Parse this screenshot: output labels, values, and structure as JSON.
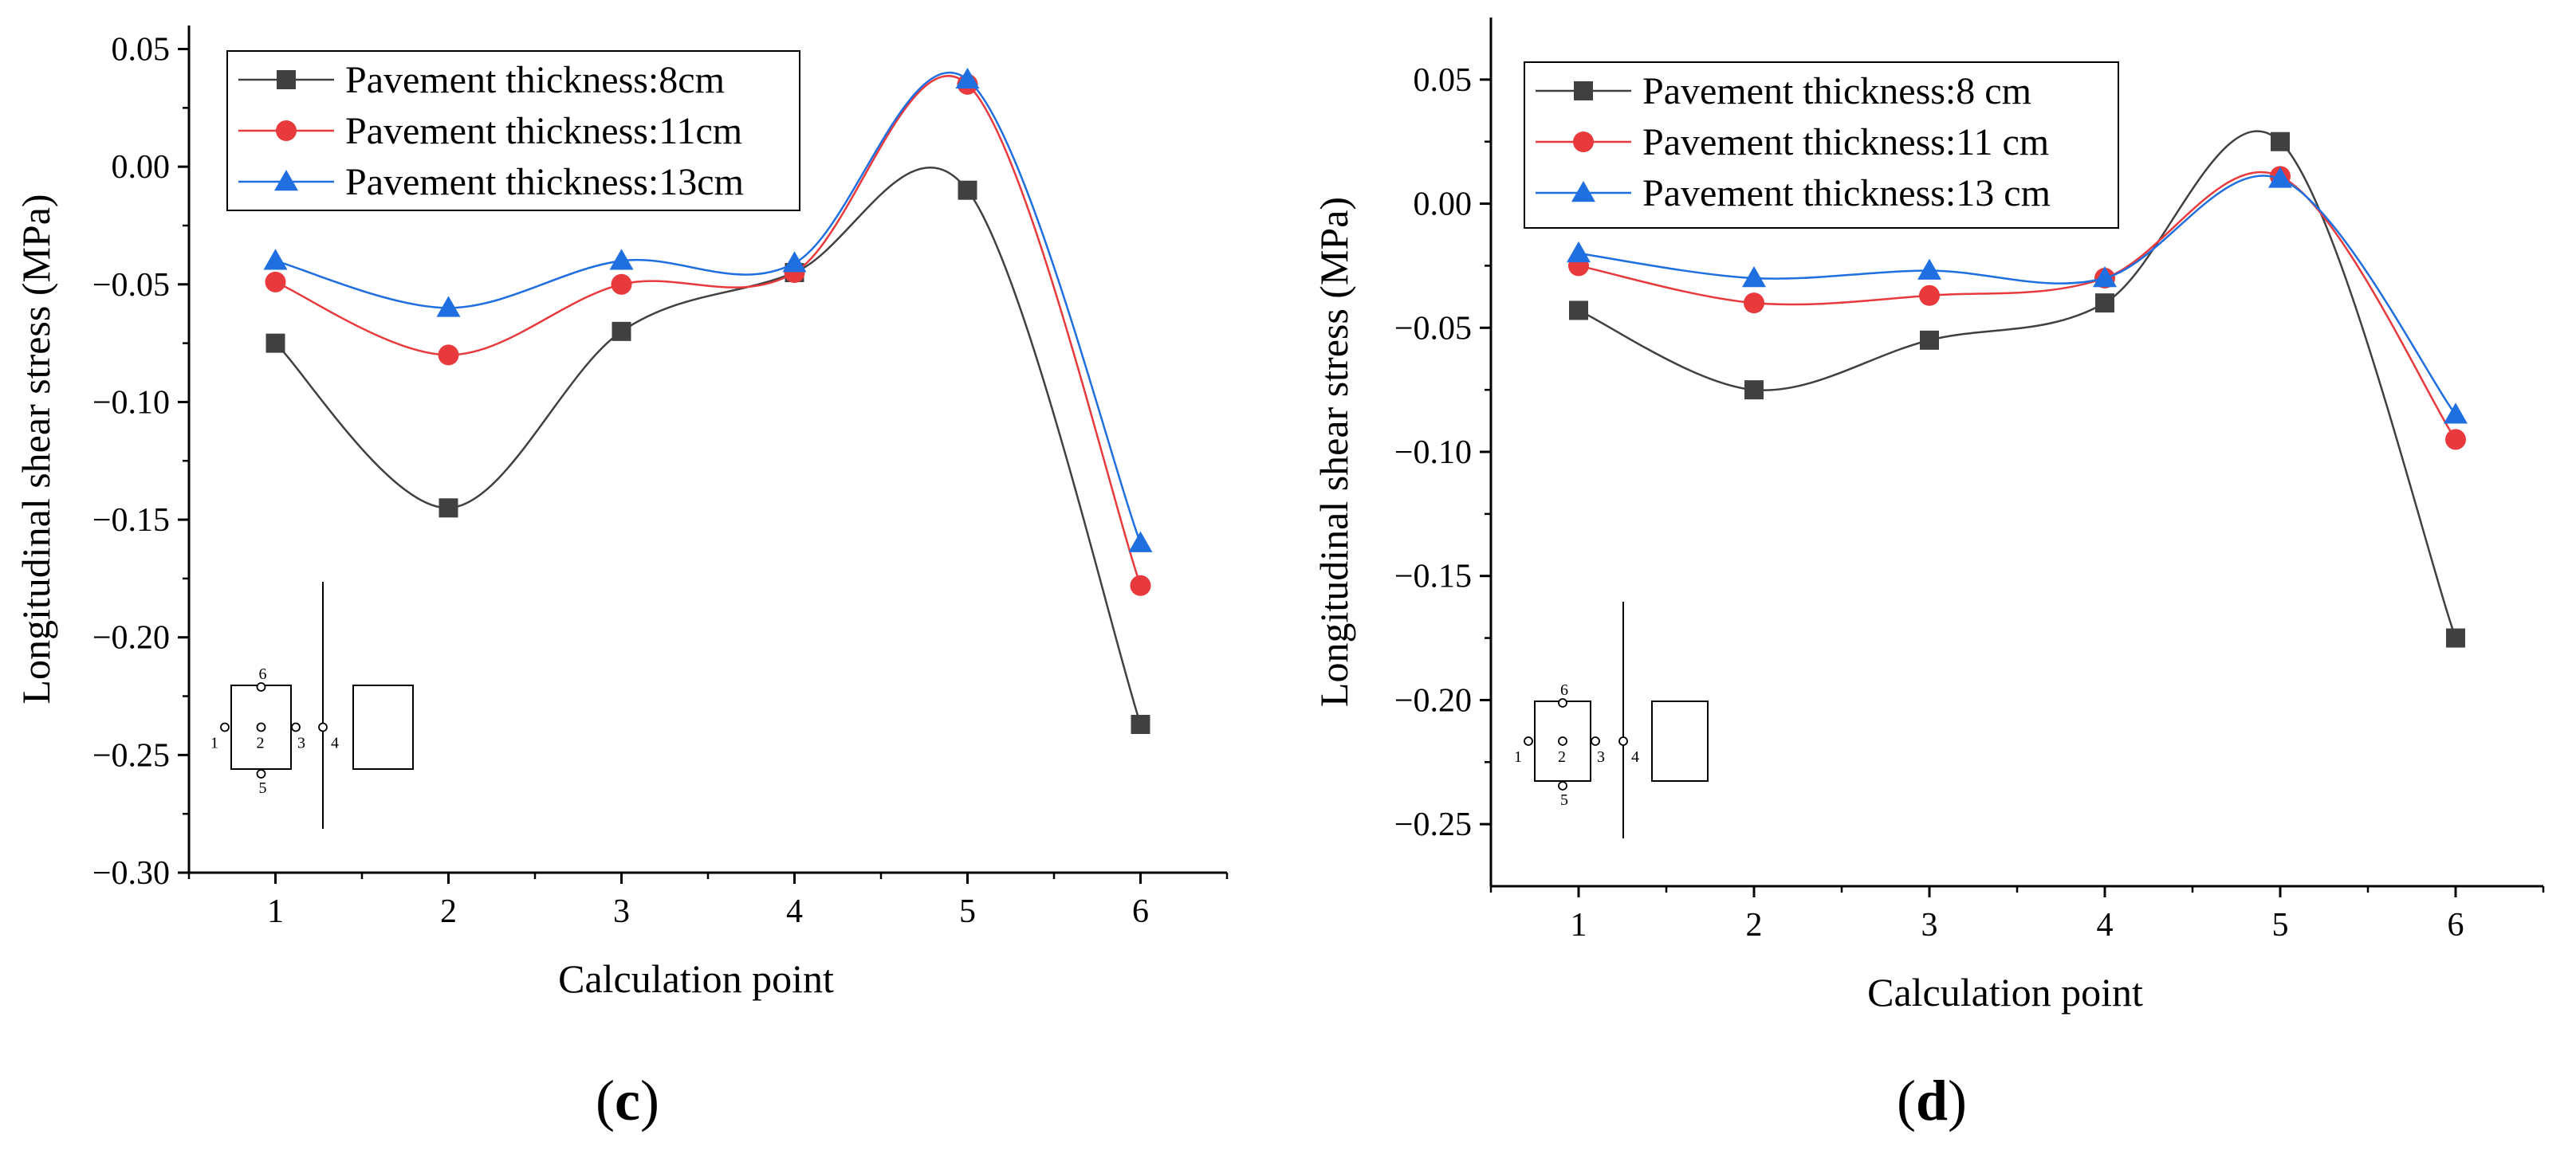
{
  "chart_data": [
    {
      "type": "line",
      "panel_label": "c",
      "xlabel": "Calculation point",
      "ylabel": "Longitudinal shear stress (MPa)",
      "categories": [
        1,
        2,
        3,
        4,
        5,
        6
      ],
      "xlim": [
        0.5,
        6.5
      ],
      "ylim": [
        -0.3,
        0.06
      ],
      "yticks": [
        0.05,
        0.0,
        -0.05,
        -0.1,
        -0.15,
        -0.2,
        -0.25,
        -0.3
      ],
      "ytick_labels": [
        "0.05",
        "0.00",
        "−0.05",
        "−0.10",
        "−0.15",
        "−0.20",
        "−0.25",
        "−0.30"
      ],
      "xticks": [
        1,
        2,
        3,
        4,
        5,
        6
      ],
      "xtick_labels": [
        "1",
        "2",
        "3",
        "4",
        "5",
        "6"
      ],
      "legend_position": "top-left",
      "series": [
        {
          "name": "Pavement thickness:8cm",
          "color": "#404040",
          "marker": "square",
          "values": [
            -0.075,
            -0.145,
            -0.07,
            -0.045,
            -0.01,
            -0.237
          ]
        },
        {
          "name": "Pavement thickness:11cm",
          "color": "#e8393c",
          "marker": "circle",
          "values": [
            -0.049,
            -0.08,
            -0.05,
            -0.045,
            0.035,
            -0.178
          ]
        },
        {
          "name": "Pavement thickness:13cm",
          "color": "#1f6fe0",
          "marker": "triangle",
          "values": [
            -0.04,
            -0.06,
            -0.04,
            -0.041,
            0.037,
            -0.16
          ]
        }
      ],
      "inset_labels": [
        "6",
        "1",
        "2",
        "3",
        "4",
        "5"
      ]
    },
    {
      "type": "line",
      "panel_label": "d",
      "xlabel": "Calculation point",
      "ylabel": "Longitudinal shear stress (MPa)",
      "categories": [
        1,
        2,
        3,
        4,
        5,
        6
      ],
      "xlim": [
        0.5,
        6.5
      ],
      "ylim": [
        -0.275,
        0.075
      ],
      "yticks": [
        0.05,
        0.0,
        -0.05,
        -0.1,
        -0.15,
        -0.2,
        -0.25
      ],
      "ytick_labels": [
        "0.05",
        "0.00",
        "−0.05",
        "−0.10",
        "−0.15",
        "−0.20",
        "−0.25"
      ],
      "xticks": [
        1,
        2,
        3,
        4,
        5,
        6
      ],
      "xtick_labels": [
        "1",
        "2",
        "3",
        "4",
        "5",
        "6"
      ],
      "legend_position": "top-left",
      "series": [
        {
          "name": "Pavement thickness:8 cm",
          "color": "#404040",
          "marker": "square",
          "values": [
            -0.043,
            -0.075,
            -0.055,
            -0.04,
            0.025,
            -0.175
          ]
        },
        {
          "name": "Pavement thickness:11 cm",
          "color": "#e8393c",
          "marker": "circle",
          "values": [
            -0.025,
            -0.04,
            -0.037,
            -0.03,
            0.011,
            -0.095
          ]
        },
        {
          "name": "Pavement thickness:13 cm",
          "color": "#1f6fe0",
          "marker": "triangle",
          "values": [
            -0.02,
            -0.03,
            -0.027,
            -0.03,
            0.01,
            -0.085
          ]
        }
      ],
      "inset_labels": [
        "6",
        "1",
        "2",
        "3",
        "4",
        "5"
      ]
    }
  ]
}
